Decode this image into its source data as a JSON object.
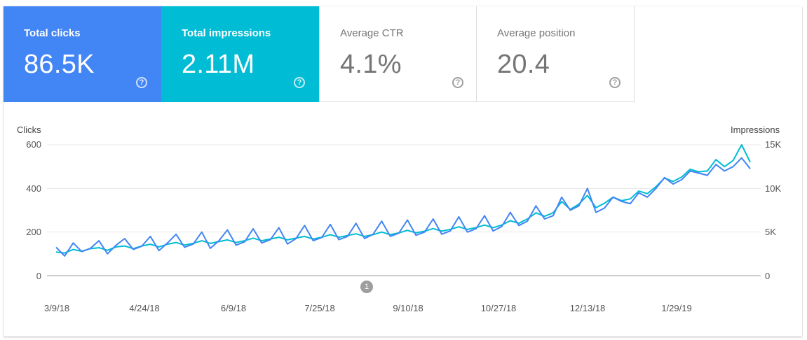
{
  "metrics": {
    "clicks": {
      "label": "Total clicks",
      "value": "86.5K",
      "help": "?"
    },
    "impressions": {
      "label": "Total impressions",
      "value": "2.11M",
      "help": "?"
    },
    "ctr": {
      "label": "Average CTR",
      "value": "4.1%",
      "help": "?"
    },
    "position": {
      "label": "Average position",
      "value": "20.4",
      "help": "?"
    }
  },
  "colors": {
    "clicks": "#4285f4",
    "impressions": "#00bcd4"
  },
  "annotation": {
    "label": "1"
  },
  "chart_data": {
    "type": "line",
    "left_axis": {
      "title": "Clicks",
      "ticks": [
        "600",
        "400",
        "200",
        "0"
      ],
      "ylim": [
        0,
        600
      ]
    },
    "right_axis": {
      "title": "Impressions",
      "ticks": [
        "15K",
        "10K",
        "5K",
        "0"
      ],
      "ylim": [
        0,
        15000
      ]
    },
    "x_tick_labels": [
      "3/9/18",
      "4/24/18",
      "6/9/18",
      "7/25/18",
      "9/10/18",
      "10/27/18",
      "12/13/18",
      "1/29/19"
    ],
    "grid": true,
    "series": [
      {
        "name": "Clicks",
        "axis": "left",
        "color": "#4285f4",
        "values": [
          130,
          90,
          150,
          110,
          125,
          160,
          100,
          140,
          170,
          120,
          135,
          180,
          115,
          150,
          190,
          130,
          145,
          200,
          125,
          160,
          210,
          140,
          155,
          215,
          150,
          165,
          220,
          145,
          170,
          230,
          160,
          175,
          235,
          165,
          180,
          240,
          170,
          190,
          250,
          180,
          195,
          255,
          185,
          200,
          260,
          190,
          205,
          270,
          200,
          215,
          275,
          205,
          225,
          290,
          230,
          250,
          320,
          260,
          275,
          360,
          300,
          320,
          400,
          290,
          310,
          360,
          340,
          330,
          380,
          360,
          400,
          450,
          420,
          440,
          480,
          470,
          460,
          510,
          480,
          500,
          540,
          490
        ]
      },
      {
        "name": "Impressions",
        "axis": "right",
        "color": "#00bcd4",
        "values": [
          2700,
          2600,
          3000,
          2800,
          3100,
          3200,
          2900,
          3300,
          3400,
          3100,
          3400,
          3600,
          3300,
          3600,
          3800,
          3500,
          3700,
          4000,
          3700,
          3900,
          4100,
          3800,
          4000,
          4300,
          4000,
          4200,
          4400,
          4100,
          4300,
          4500,
          4200,
          4400,
          4700,
          4400,
          4600,
          4800,
          4500,
          4700,
          5000,
          4700,
          4900,
          5200,
          4900,
          5100,
          5400,
          5100,
          5300,
          5600,
          5300,
          5500,
          5800,
          5500,
          5800,
          6300,
          6000,
          6500,
          7200,
          6800,
          7200,
          8500,
          7600,
          8200,
          9200,
          7800,
          8300,
          9000,
          8600,
          8800,
          9700,
          9400,
          10200,
          11200,
          10800,
          11300,
          12200,
          11900,
          12000,
          13300,
          12500,
          13200,
          15000,
          13000
        ]
      }
    ]
  }
}
